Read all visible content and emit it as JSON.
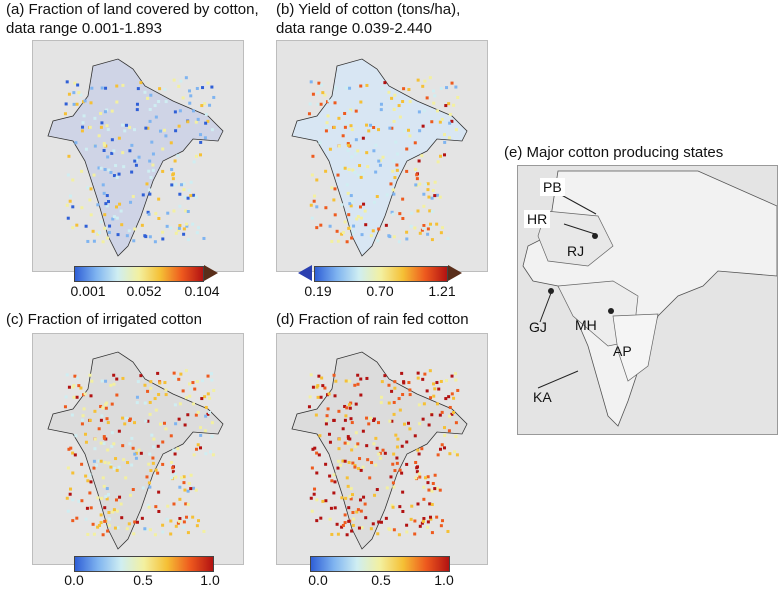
{
  "panels": {
    "a": {
      "title": "(a) Fraction of land covered by cotton,\n     data range 0.001-1.893",
      "ticks": [
        "0.001",
        "0.052",
        "0.104"
      ]
    },
    "b": {
      "title": "(b) Yield of cotton (tons/ha),\n     data range 0.039-2.440",
      "ticks": [
        "0.19",
        "0.70",
        "1.21"
      ]
    },
    "c": {
      "title": "(c)  Fraction of irrigated cotton",
      "ticks": [
        "0.0",
        "0.5",
        "1.0"
      ]
    },
    "d": {
      "title": "(d)  Fraction of rain fed cotton",
      "ticks": [
        "0.0",
        "0.5",
        "1.0"
      ]
    },
    "e": {
      "title": "(e)  Major cotton producing states",
      "states": [
        "PB",
        "HR",
        "RJ",
        "GJ",
        "MH",
        "AP",
        "KA"
      ]
    }
  },
  "colormap": [
    "#2f5fd6",
    "#7fb4f0",
    "#cfeef2",
    "#f3f0a0",
    "#f5c035",
    "#ee5a1e",
    "#b21212"
  ],
  "arrow_color": "#5a2e1a",
  "arrow_left_color": "#2a3fb0"
}
